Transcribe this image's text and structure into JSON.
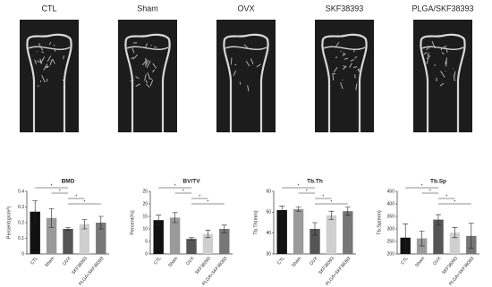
{
  "panels": {
    "labels": [
      "CTL",
      "Sham",
      "OVX",
      "SKF38393",
      "PLGA/SKF38393"
    ]
  },
  "chart_data": [
    {
      "type": "bar",
      "title": "BMD",
      "y_label": "Percent(g/cm³)",
      "categories": [
        "CTL",
        "Sham",
        "OVX",
        "SKF38393",
        "PLGA+SKF38393"
      ],
      "values": [
        0.27,
        0.23,
        0.16,
        0.19,
        0.2
      ],
      "errors": [
        0.07,
        0.06,
        0.01,
        0.03,
        0.04
      ],
      "colors": [
        "#111111",
        "#9a9a9a",
        "#555555",
        "#cfcfcf",
        "#777777"
      ],
      "ylim": [
        0,
        0.4
      ],
      "yticks": [
        0,
        0.1,
        0.2,
        0.3,
        0.4
      ],
      "significance": [
        {
          "from": 0,
          "to": 2,
          "label": "*"
        },
        {
          "from": 1,
          "to": 2,
          "label": "*"
        },
        {
          "from": 2,
          "to": 3,
          "label": "*"
        },
        {
          "from": 2,
          "to": 4,
          "label": "*"
        }
      ]
    },
    {
      "type": "bar",
      "title": "BV/TV",
      "y_label": "Percent(%)",
      "categories": [
        "CTL",
        "Sham",
        "OVX",
        "SKF38393",
        "PLGA+SKF38393"
      ],
      "values": [
        13.5,
        14.5,
        6,
        8,
        10
      ],
      "errors": [
        2,
        2,
        0.5,
        1.5,
        1.5
      ],
      "colors": [
        "#111111",
        "#9a9a9a",
        "#555555",
        "#cfcfcf",
        "#777777"
      ],
      "ylim": [
        0,
        25
      ],
      "yticks": [
        0,
        5,
        10,
        15,
        20,
        25
      ],
      "significance": [
        {
          "from": 0,
          "to": 2,
          "label": "*"
        },
        {
          "from": 1,
          "to": 2,
          "label": "*"
        },
        {
          "from": 2,
          "to": 3,
          "label": "*"
        },
        {
          "from": 2,
          "to": 4,
          "label": "*"
        }
      ]
    },
    {
      "type": "bar",
      "title": "Tb.Th",
      "y_label": "Tb.Th(mm)",
      "categories": [
        "CTL",
        "Sham",
        "OVX",
        "SKF38393",
        "PLGA+SKF38393"
      ],
      "values": [
        51,
        51.5,
        42,
        48.5,
        50.5
      ],
      "errors": [
        2,
        1,
        3,
        2,
        2
      ],
      "colors": [
        "#111111",
        "#9a9a9a",
        "#555555",
        "#cfcfcf",
        "#777777"
      ],
      "ylim": [
        30,
        60
      ],
      "yticks": [
        30,
        40,
        50,
        60
      ],
      "significance": [
        {
          "from": 0,
          "to": 2,
          "label": "*"
        },
        {
          "from": 1,
          "to": 2,
          "label": "*"
        },
        {
          "from": 2,
          "to": 3,
          "label": "*"
        },
        {
          "from": 2,
          "to": 4,
          "label": "*"
        }
      ]
    },
    {
      "type": "bar",
      "title": "Tb.Sp",
      "y_label": "Tb.Sp(mm)",
      "categories": [
        "CTL",
        "Sham",
        "OVX",
        "SKF38393",
        "PLGA+SKF38393"
      ],
      "values": [
        265,
        262,
        337,
        285,
        272
      ],
      "errors": [
        55,
        30,
        20,
        20,
        50
      ],
      "colors": [
        "#111111",
        "#9a9a9a",
        "#555555",
        "#cfcfcf",
        "#777777"
      ],
      "ylim": [
        200,
        450
      ],
      "yticks": [
        200,
        250,
        300,
        350,
        400,
        450
      ],
      "significance": [
        {
          "from": 0,
          "to": 2,
          "label": "*"
        },
        {
          "from": 1,
          "to": 2,
          "label": "*"
        },
        {
          "from": 2,
          "to": 3,
          "label": "*"
        },
        {
          "from": 2,
          "to": 4,
          "label": "*"
        }
      ]
    }
  ]
}
